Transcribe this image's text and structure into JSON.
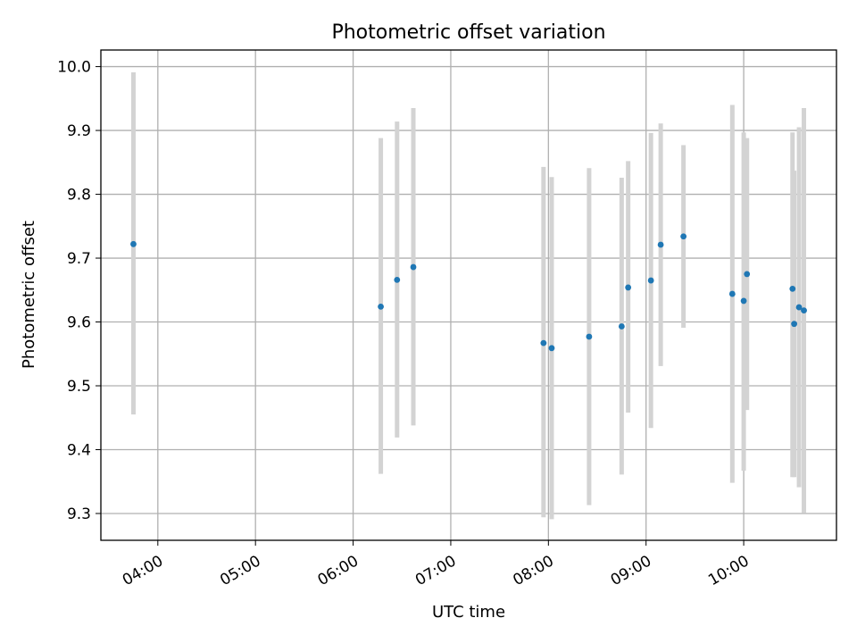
{
  "chart_data": {
    "type": "scatter",
    "title": "Photometric offset variation",
    "xlabel": "UTC time",
    "ylabel": "Photometric offset",
    "x_axis_type": "time",
    "xlim": [
      "03:25",
      "10:57"
    ],
    "ylim": [
      9.258,
      10.026
    ],
    "x_ticks": [
      "04:00",
      "05:00",
      "06:00",
      "07:00",
      "08:00",
      "09:00",
      "10:00"
    ],
    "y_ticks": [
      "10.0",
      "9.9",
      "9.8",
      "9.7",
      "9.6",
      "9.5",
      "9.4",
      "9.3"
    ],
    "grid": true,
    "marker_color": "#1f77b4",
    "errorbar_color": "#d3d3d3",
    "points": [
      {
        "x": "03:45",
        "y": 9.722,
        "ylow": 9.455,
        "yhigh": 9.991
      },
      {
        "x": "06:17",
        "y": 9.624,
        "ylow": 9.362,
        "yhigh": 9.888
      },
      {
        "x": "06:27",
        "y": 9.666,
        "ylow": 9.419,
        "yhigh": 9.914
      },
      {
        "x": "06:37",
        "y": 9.686,
        "ylow": 9.438,
        "yhigh": 9.935
      },
      {
        "x": "07:57",
        "y": 9.567,
        "ylow": 9.294,
        "yhigh": 9.843
      },
      {
        "x": "08:02",
        "y": 9.559,
        "ylow": 9.291,
        "yhigh": 9.827
      },
      {
        "x": "08:25",
        "y": 9.577,
        "ylow": 9.313,
        "yhigh": 9.841
      },
      {
        "x": "08:45",
        "y": 9.593,
        "ylow": 9.361,
        "yhigh": 9.826
      },
      {
        "x": "08:49",
        "y": 9.654,
        "ylow": 9.458,
        "yhigh": 9.852
      },
      {
        "x": "09:03",
        "y": 9.665,
        "ylow": 9.434,
        "yhigh": 9.896
      },
      {
        "x": "09:09",
        "y": 9.721,
        "ylow": 9.531,
        "yhigh": 9.911
      },
      {
        "x": "09:23",
        "y": 9.734,
        "ylow": 9.591,
        "yhigh": 9.877
      },
      {
        "x": "09:53",
        "y": 9.644,
        "ylow": 9.348,
        "yhigh": 9.94
      },
      {
        "x": "10:00",
        "y": 9.633,
        "ylow": 9.367,
        "yhigh": 9.897
      },
      {
        "x": "10:02",
        "y": 9.675,
        "ylow": 9.462,
        "yhigh": 9.888
      },
      {
        "x": "10:30",
        "y": 9.652,
        "ylow": 9.357,
        "yhigh": 9.897
      },
      {
        "x": "10:31",
        "y": 9.597,
        "ylow": 9.357,
        "yhigh": 9.837
      },
      {
        "x": "10:34",
        "y": 9.623,
        "ylow": 9.341,
        "yhigh": 9.905
      },
      {
        "x": "10:37",
        "y": 9.618,
        "ylow": 9.301,
        "yhigh": 9.935
      }
    ]
  }
}
